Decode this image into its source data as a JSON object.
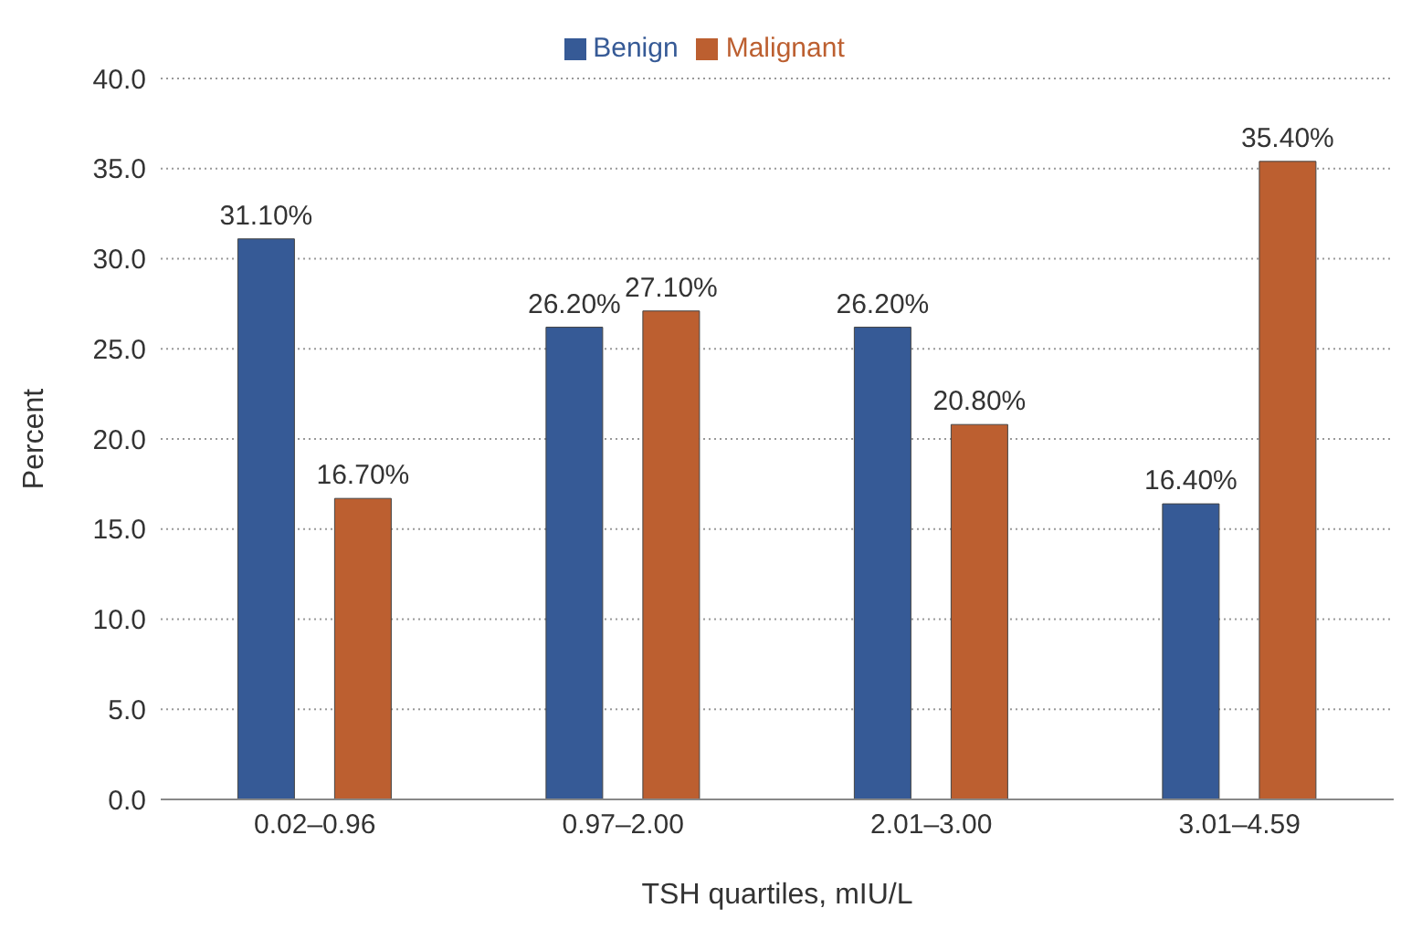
{
  "chart_data": {
    "type": "bar",
    "xlabel": "TSH quartiles, mIU/L",
    "ylabel": "Percent",
    "categories": [
      "0.02–0.96",
      "0.97–2.00",
      "2.01–3.00",
      "3.01–4.59"
    ],
    "series": [
      {
        "name": "Benign",
        "color": "#365a96",
        "values": [
          31.1,
          26.2,
          26.2,
          16.4
        ],
        "value_labels": [
          "31.10%",
          "26.20%",
          "26.20%",
          "16.40%"
        ]
      },
      {
        "name": "Malignant",
        "color": "#bc5f30",
        "values": [
          16.7,
          27.1,
          20.8,
          35.4
        ],
        "value_labels": [
          "16.70%",
          "27.10%",
          "20.80%",
          "35.40%"
        ]
      }
    ],
    "ylim": [
      0,
      40
    ],
    "yticks": [
      {
        "value": 0,
        "label": "0.0"
      },
      {
        "value": 5,
        "label": "5.0"
      },
      {
        "value": 10,
        "label": "10.0"
      },
      {
        "value": 15,
        "label": "15.0"
      },
      {
        "value": 20,
        "label": "20.0"
      },
      {
        "value": 25,
        "label": "25.0"
      },
      {
        "value": 30,
        "label": "30.0"
      },
      {
        "value": 35,
        "label": "35.0"
      },
      {
        "value": 40,
        "label": "40.0"
      }
    ],
    "grid": "y",
    "legend": "top"
  }
}
